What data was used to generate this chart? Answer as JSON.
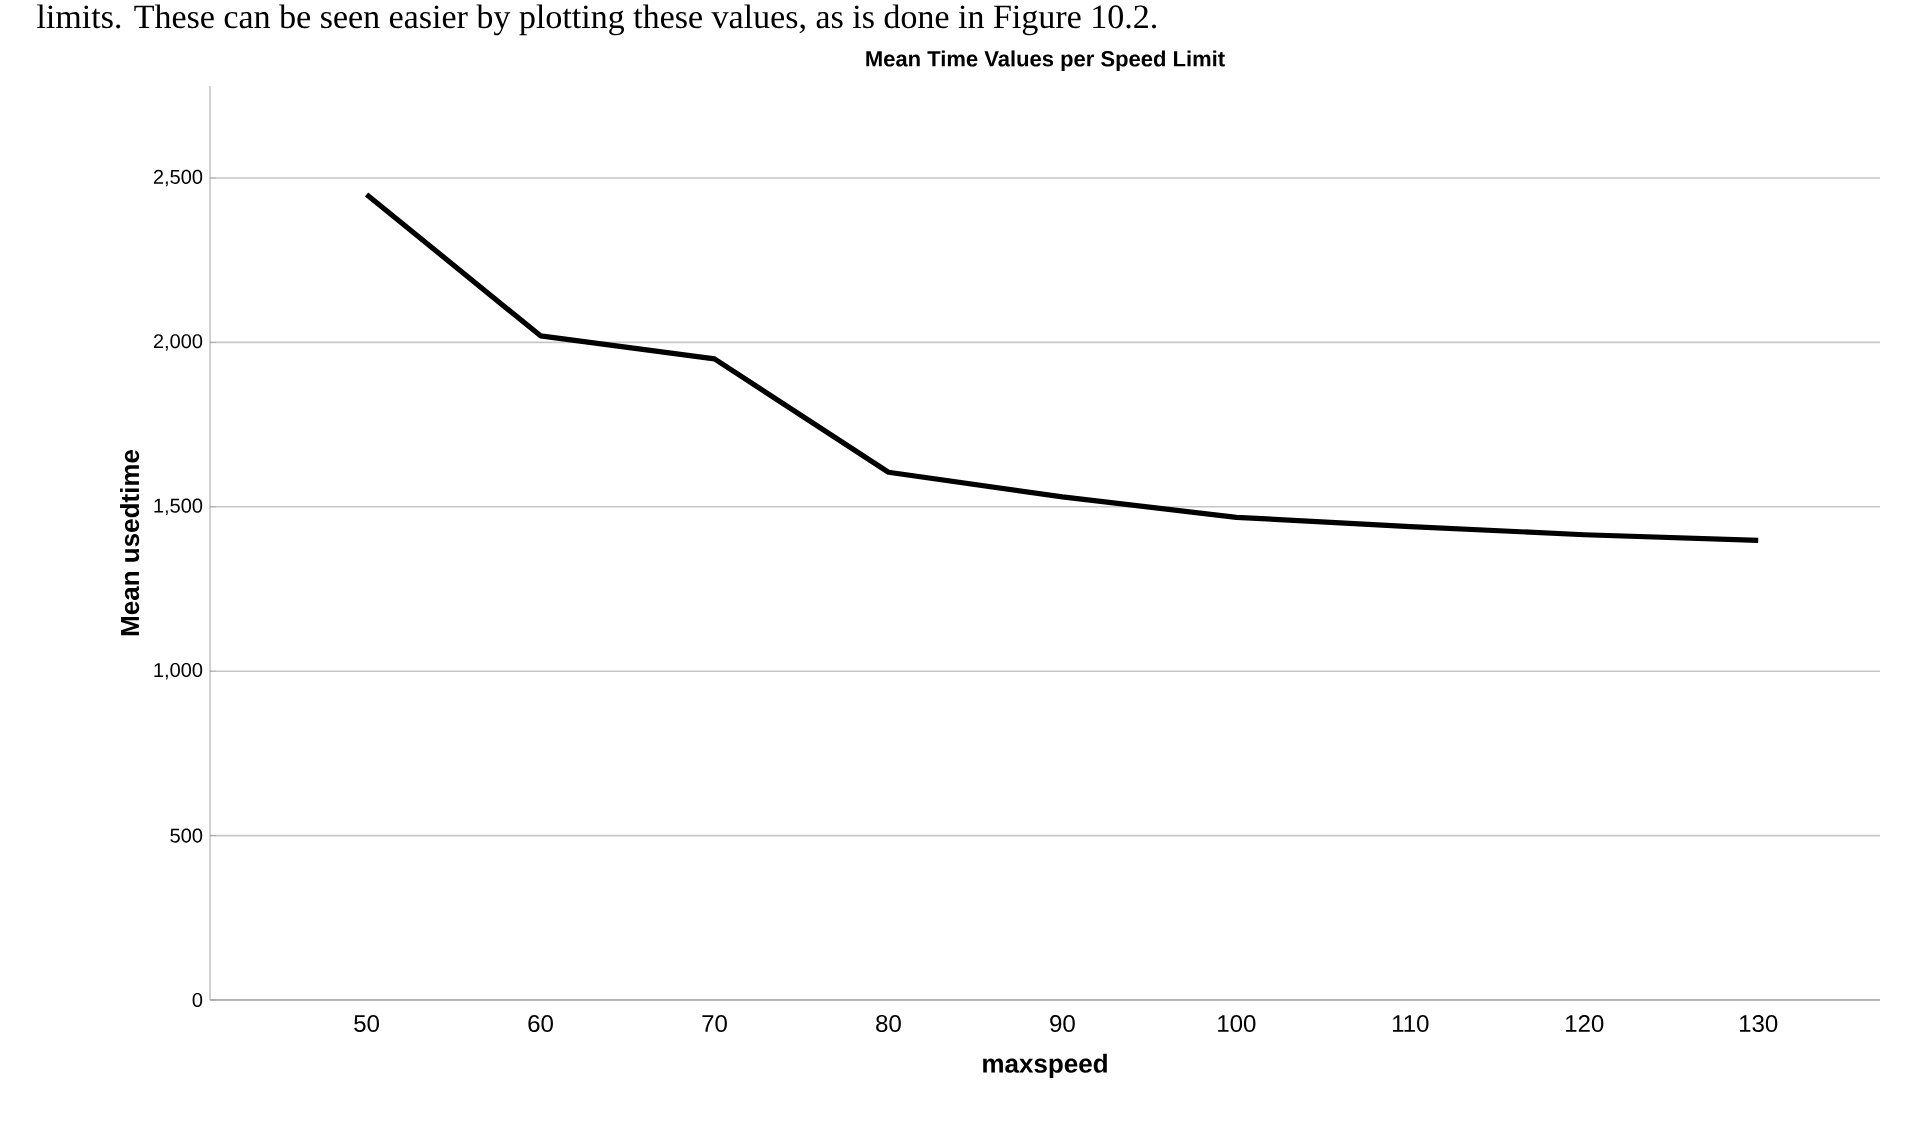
{
  "chart_data": {
    "type": "line",
    "title": "Mean Time Values per Speed Limit",
    "xlabel": "maxspeed",
    "ylabel": "Mean usedtime",
    "annotations": [
      "limits. These can be seen easier by plotting these values, as is done in Figure 10.2."
    ],
    "x": [
      50,
      60,
      70,
      80,
      90,
      100,
      110,
      120,
      130
    ],
    "series": [
      {
        "color": "#000000",
        "values": [
          2450,
          2020,
          1950,
          1605,
          1530,
          1468,
          1440,
          1415,
          1398
        ]
      }
    ],
    "xlim": [
      41,
      137
    ],
    "xticks": [
      50,
      60,
      70,
      80,
      90,
      100,
      110,
      120,
      130
    ],
    "ylim": [
      0,
      2780
    ],
    "yticks": [
      {
        "value": 0,
        "label": "0"
      },
      {
        "value": 500,
        "label": "500"
      },
      {
        "value": 1000,
        "label": "1,000"
      },
      {
        "value": 1500,
        "label": "1,500"
      },
      {
        "value": 2000,
        "label": "2,000"
      },
      {
        "value": 2500,
        "label": "2,500"
      }
    ],
    "grid": "y",
    "marker": "none",
    "line_style": "solid"
  }
}
